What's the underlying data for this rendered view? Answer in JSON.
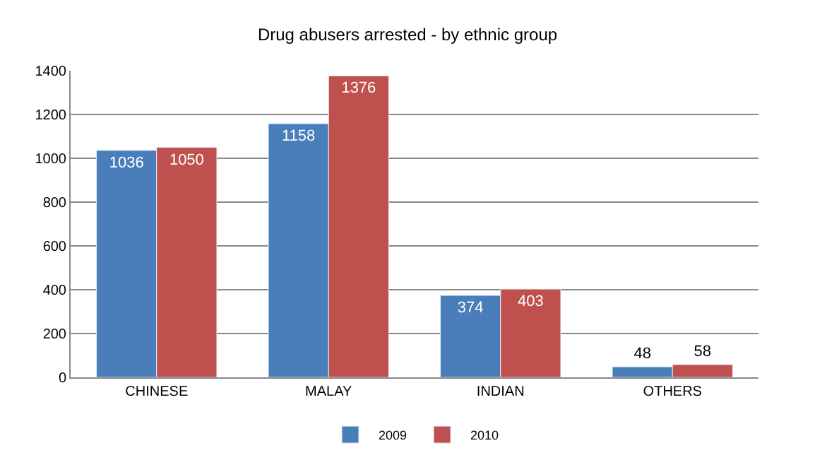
{
  "chart_data": {
    "type": "bar",
    "title": "Drug abusers arrested - by ethnic group",
    "categories": [
      "CHINESE",
      "MALAY",
      "INDIAN",
      "OTHERS"
    ],
    "series": [
      {
        "name": "2009",
        "color": "#4a7ebb",
        "values": [
          1036,
          1158,
          374,
          48
        ]
      },
      {
        "name": "2010",
        "color": "#c0504d",
        "values": [
          1050,
          1376,
          403,
          58
        ]
      }
    ],
    "ylim": [
      0,
      1400
    ],
    "yticks": [
      0,
      200,
      400,
      600,
      800,
      1000,
      1200,
      1400
    ],
    "grid": "y",
    "legend": "bottom",
    "data_labels": true
  }
}
